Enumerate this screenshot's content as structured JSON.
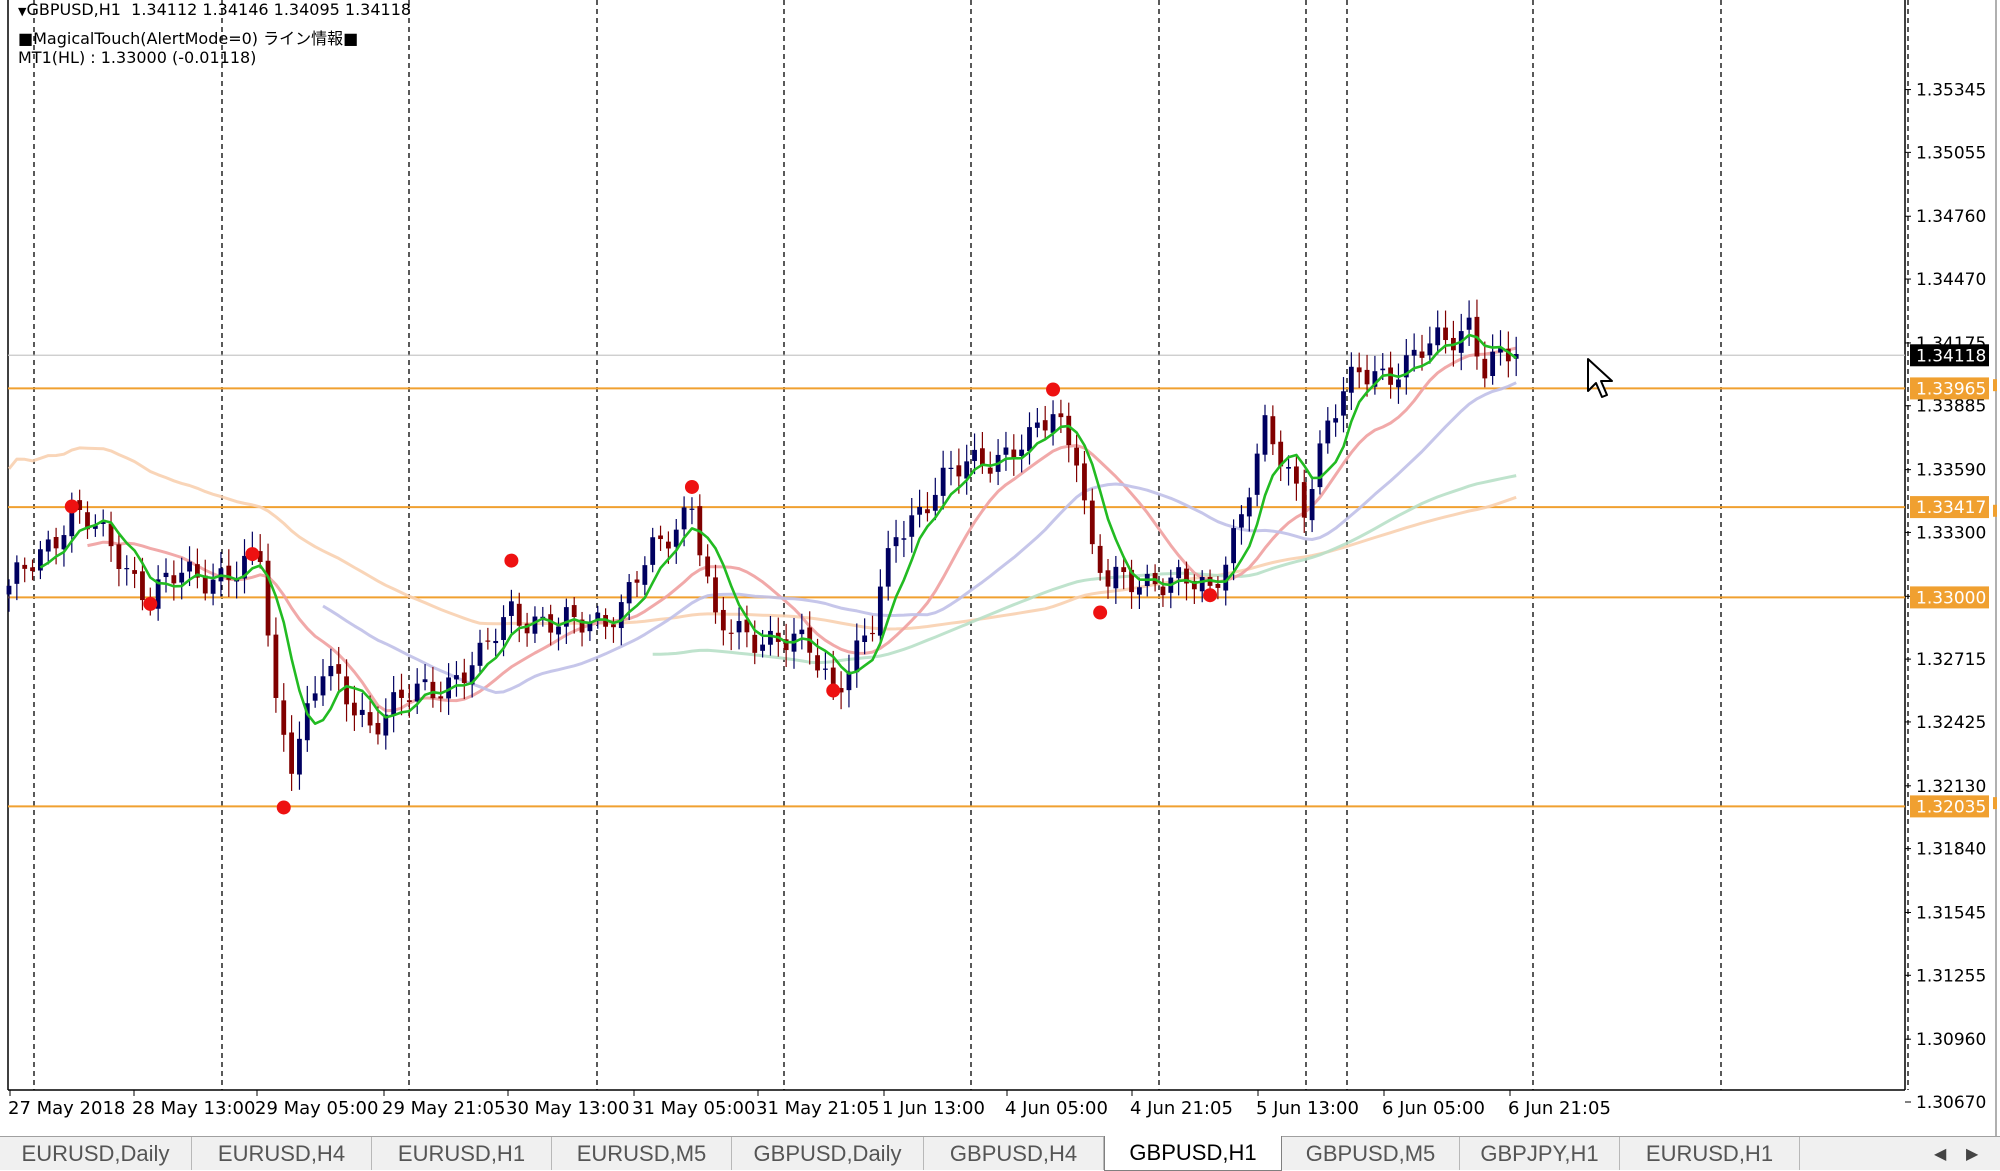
{
  "window": {
    "symbol_line": "GBPUSD,H1  1.34112 1.34146 1.34095 1.34118",
    "indicator_line": "■MagicalTouch(AlertMode=0) ライン情報■",
    "mt1_line": "MT1(HL) : 1.33000 (-0.01118)"
  },
  "colors": {
    "background": "#ffffff",
    "bull_candle": "#000060",
    "bear_candle": "#800000",
    "horizontal_line": "#f0a030",
    "price_label_bg": "#f0a030",
    "current_price_bg": "#000000",
    "ma_fast": "#22bb22",
    "ma_pink": "#f0a0a0",
    "ma_lavender": "#c0c0e8",
    "ma_peach": "#f8d0b0",
    "ma_mint": "#b8e0c8",
    "pivot_dot": "#ee1111"
  },
  "chart_data": {
    "type": "candlestick",
    "symbol": "GBPUSD",
    "timeframe": "H1",
    "ohlc_last": {
      "open": 1.34112,
      "high": 1.34146,
      "low": 1.34095,
      "close": 1.34118
    },
    "ylim": [
      1.3067,
      1.3562
    ],
    "y_ticks": [
      "1.35345",
      "1.35055",
      "1.34760",
      "1.34470",
      "1.34175",
      "1.33885",
      "1.33590",
      "1.33300",
      "1.33005",
      "1.32715",
      "1.32425",
      "1.32130",
      "1.31840",
      "1.31545",
      "1.31255",
      "1.30960",
      "1.30670"
    ],
    "x_ticks": [
      "27 May 2018",
      "28 May 13:00",
      "29 May 05:00",
      "29 May 21:05",
      "30 May 13:00",
      "31 May 05:00",
      "31 May 21:05",
      "1 Jun 13:00",
      "4 Jun 05:00",
      "4 Jun 21:05",
      "5 Jun 13:00",
      "6 Jun 05:00",
      "6 Jun 21:05"
    ],
    "horizontal_lines": [
      {
        "price": 1.33965,
        "label": "1.33965"
      },
      {
        "price": 1.33417,
        "label": "1.33417"
      },
      {
        "price": 1.33,
        "label": "1.33000"
      },
      {
        "price": 1.32035,
        "label": "1.32035"
      }
    ],
    "current_price": {
      "price": 1.34118,
      "label": "1.34118"
    },
    "pivot_points": [
      {
        "bar": 8,
        "price": 1.3342
      },
      {
        "bar": 18,
        "price": 1.3297
      },
      {
        "bar": 31,
        "price": 1.332
      },
      {
        "bar": 35,
        "price": 1.3203
      },
      {
        "bar": 64,
        "price": 1.3317
      },
      {
        "bar": 87,
        "price": 1.3351
      },
      {
        "bar": 105,
        "price": 1.3257
      },
      {
        "bar": 133,
        "price": 1.3396
      },
      {
        "bar": 139,
        "price": 1.3293
      },
      {
        "bar": 153,
        "price": 1.3301
      }
    ],
    "series": [
      {
        "name": "candles",
        "bars": 193,
        "anchor_close": [
          [
            0,
            1.3302
          ],
          [
            8,
            1.334
          ],
          [
            14,
            1.332
          ],
          [
            18,
            1.33
          ],
          [
            22,
            1.331
          ],
          [
            30,
            1.3312
          ],
          [
            32,
            1.3318
          ],
          [
            34,
            1.325
          ],
          [
            36,
            1.3228
          ],
          [
            40,
            1.3265
          ],
          [
            46,
            1.3243
          ],
          [
            52,
            1.3255
          ],
          [
            60,
            1.327
          ],
          [
            64,
            1.3295
          ],
          [
            70,
            1.3285
          ],
          [
            78,
            1.3295
          ],
          [
            82,
            1.332
          ],
          [
            87,
            1.3345
          ],
          [
            90,
            1.3285
          ],
          [
            96,
            1.3283
          ],
          [
            102,
            1.3275
          ],
          [
            105,
            1.326
          ],
          [
            110,
            1.3285
          ],
          [
            113,
            1.333
          ],
          [
            118,
            1.335
          ],
          [
            124,
            1.3365
          ],
          [
            130,
            1.337
          ],
          [
            133,
            1.3385
          ],
          [
            136,
            1.337
          ],
          [
            138,
            1.332
          ],
          [
            140,
            1.3305
          ],
          [
            146,
            1.331
          ],
          [
            153,
            1.3302
          ],
          [
            157,
            1.334
          ],
          [
            160,
            1.3375
          ],
          [
            165,
            1.3345
          ],
          [
            168,
            1.338
          ],
          [
            172,
            1.3403
          ],
          [
            178,
            1.3407
          ],
          [
            184,
            1.3422
          ],
          [
            186,
            1.3428
          ],
          [
            188,
            1.3405
          ],
          [
            192,
            1.3412
          ]
        ]
      },
      {
        "name": "ma_fast",
        "period": 6
      },
      {
        "name": "ma_lavender",
        "period": 30
      },
      {
        "name": "ma_pink",
        "period": 15
      },
      {
        "name": "ma_mint",
        "period": 70
      },
      {
        "name": "ma_peach",
        "period": 100
      }
    ]
  },
  "tabs": [
    {
      "label": "EURUSD,Daily",
      "active": false
    },
    {
      "label": "EURUSD,H4",
      "active": false
    },
    {
      "label": "EURUSD,H1",
      "active": false
    },
    {
      "label": "EURUSD,M5",
      "active": false
    },
    {
      "label": "GBPUSD,Daily",
      "active": false
    },
    {
      "label": "GBPUSD,H4",
      "active": false
    },
    {
      "label": "GBPUSD,H1",
      "active": true
    },
    {
      "label": "GBPUSD,M5",
      "active": false
    },
    {
      "label": "GBPJPY,H1",
      "active": false
    },
    {
      "label": "EURUSD,H1",
      "active": false
    }
  ],
  "icons": {
    "tab_prev": "left-arrow-icon",
    "tab_next": "right-arrow-icon",
    "cursor": "mouse-pointer-icon",
    "dropdown": "triangle-down-icon"
  },
  "tab_arrows": {
    "prev": "◀",
    "next": "▶"
  },
  "dropdown_glyph": "▼"
}
